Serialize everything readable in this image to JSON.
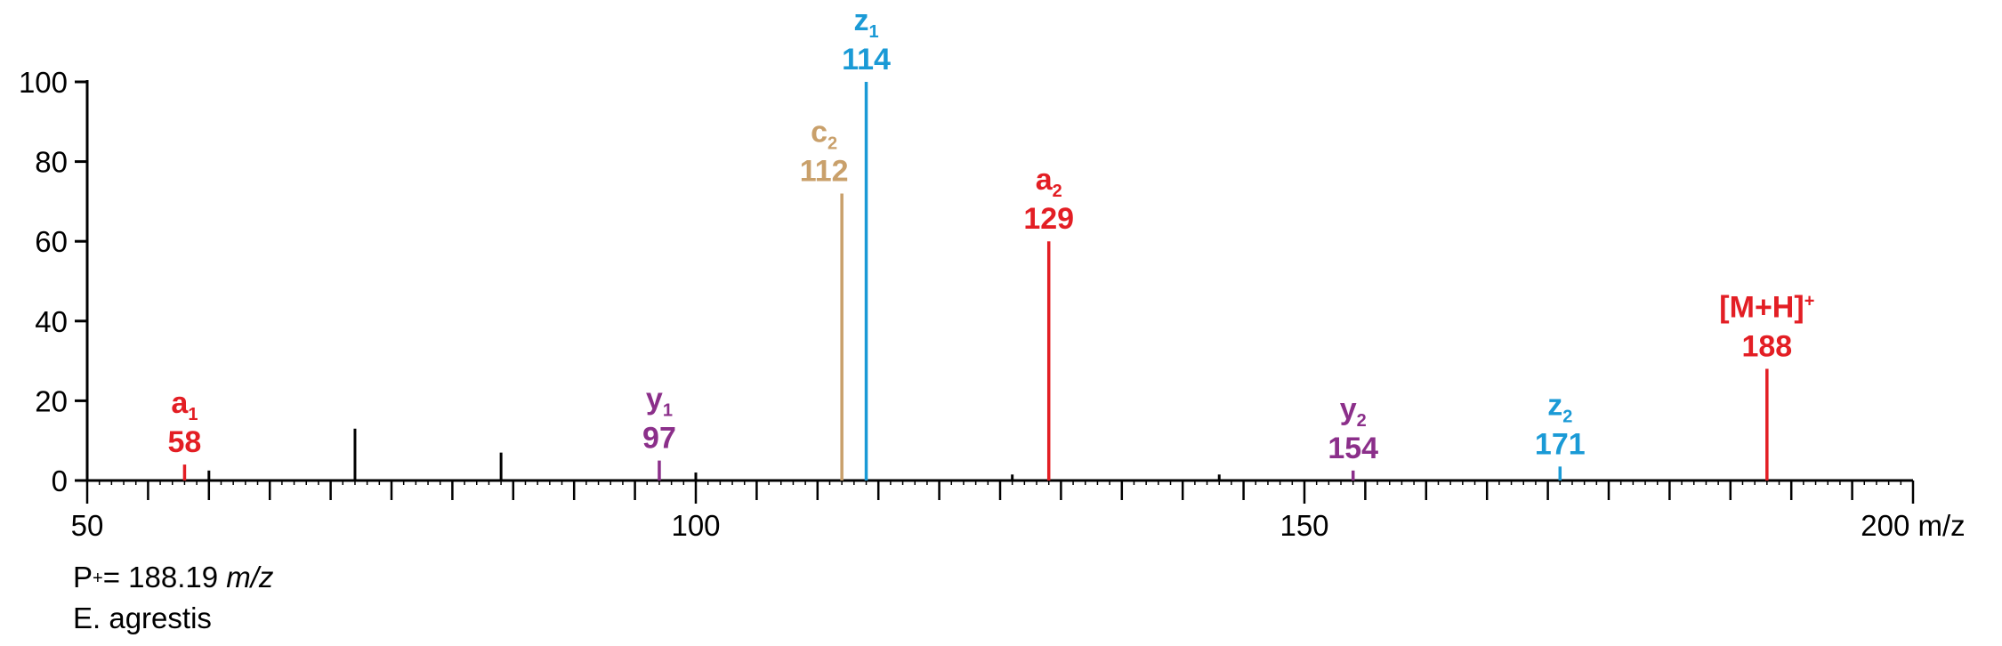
{
  "chart_data": {
    "type": "bar",
    "title": "",
    "xlabel": "",
    "x_unit": "m/z",
    "ylabel": "",
    "xlim": [
      50,
      200
    ],
    "ylim": [
      0,
      100
    ],
    "x_ticks": [
      50,
      100,
      150,
      200
    ],
    "y_ticks": [
      0,
      20,
      40,
      60,
      80,
      100
    ],
    "x_minor_step": 5,
    "x_sub_minor_step": 1,
    "grid": false,
    "colors": {
      "axis": "#000000",
      "unlabeled": "#000000",
      "a": "#e31e24",
      "c": "#c9a06b",
      "y": "#8b2f8a",
      "z": "#1a9ad6",
      "precursor": "#e31e24"
    },
    "labeled_peaks": [
      {
        "x": 58,
        "y": 4,
        "ion": "a",
        "sub": "1",
        "sup": "",
        "mz_label": "58",
        "color_key": "a"
      },
      {
        "x": 97,
        "y": 5,
        "ion": "y",
        "sub": "1",
        "sup": "",
        "mz_label": "97",
        "color_key": "y"
      },
      {
        "x": 112,
        "y": 72,
        "ion": "c",
        "sub": "2",
        "sup": "",
        "mz_label": "112",
        "color_key": "c"
      },
      {
        "x": 114,
        "y": 100,
        "ion": "z",
        "sub": "1",
        "sup": "",
        "mz_label": "114",
        "color_key": "z"
      },
      {
        "x": 129,
        "y": 60,
        "ion": "a",
        "sub": "2",
        "sup": "",
        "mz_label": "129",
        "color_key": "a"
      },
      {
        "x": 154,
        "y": 2.5,
        "ion": "y",
        "sub": "2",
        "sup": "",
        "mz_label": "154",
        "color_key": "y"
      },
      {
        "x": 171,
        "y": 3.5,
        "ion": "z",
        "sub": "2",
        "sup": "",
        "mz_label": "171",
        "color_key": "z"
      },
      {
        "x": 188,
        "y": 28,
        "ion": "[M+H]",
        "sub": "",
        "sup": "+",
        "mz_label": "188",
        "color_key": "precursor"
      }
    ],
    "unlabeled_peaks": [
      {
        "x": 60,
        "y": 2.5
      },
      {
        "x": 72,
        "y": 13
      },
      {
        "x": 84,
        "y": 7
      },
      {
        "x": 100,
        "y": 2
      },
      {
        "x": 126,
        "y": 1.5
      },
      {
        "x": 143,
        "y": 1.5
      }
    ]
  },
  "footnotes": {
    "precursor_prefix": "P",
    "precursor_sup": "+",
    "precursor_value": "= 188.19",
    "precursor_unit": "m/z",
    "species": "E. agrestis"
  }
}
